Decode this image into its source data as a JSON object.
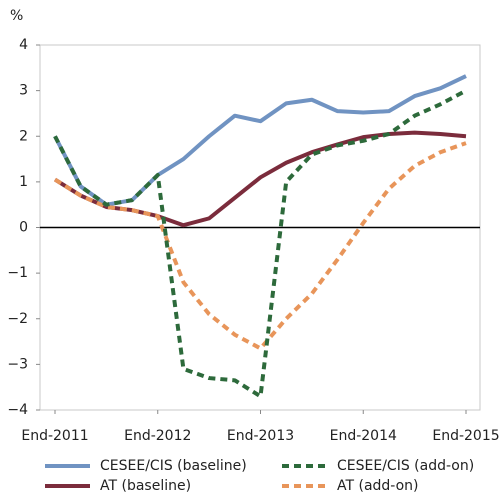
{
  "chart_data": {
    "type": "line",
    "y_unit": "%",
    "categories": [
      "End-2011",
      null,
      null,
      null,
      "End-2012",
      null,
      null,
      null,
      "End-2013",
      null,
      null,
      null,
      "End-2014",
      null,
      null,
      null,
      "End-2015"
    ],
    "series": [
      {
        "name": "CESEE/CIS (baseline)",
        "color": "#7093c2",
        "dashed": false,
        "values": [
          2.0,
          0.9,
          0.5,
          0.6,
          1.15,
          1.5,
          2.0,
          2.45,
          2.33,
          2.72,
          2.8,
          2.55,
          2.52,
          2.55,
          2.88,
          3.05,
          3.32
        ]
      },
      {
        "name": "AT (baseline)",
        "color": "#7b2c3c",
        "dashed": false,
        "values": [
          1.05,
          0.7,
          0.45,
          0.38,
          0.25,
          0.05,
          0.2,
          0.65,
          1.1,
          1.42,
          1.65,
          1.82,
          1.98,
          2.05,
          2.08,
          2.05,
          2.0
        ]
      },
      {
        "name": "CESEE/CIS (add-on)",
        "color": "#2d6a3b",
        "dashed": true,
        "values": [
          2.0,
          0.9,
          0.5,
          0.6,
          1.15,
          -3.1,
          -3.3,
          -3.35,
          -3.7,
          1.0,
          1.6,
          1.8,
          1.9,
          2.05,
          2.45,
          2.7,
          3.0
        ]
      },
      {
        "name": "AT (add-on)",
        "color": "#e8955a",
        "dashed": true,
        "values": [
          1.05,
          0.7,
          0.45,
          0.38,
          0.25,
          -1.2,
          -1.9,
          -2.35,
          -2.65,
          -2.0,
          -1.45,
          -0.7,
          0.1,
          0.85,
          1.35,
          1.65,
          1.85
        ]
      }
    ],
    "ylim": [
      -4,
      4
    ],
    "yticks": [
      {
        "value": -4,
        "label": "−4"
      },
      {
        "value": -3,
        "label": "−3"
      },
      {
        "value": -2,
        "label": "−2"
      },
      {
        "value": -1,
        "label": "−1"
      },
      0,
      1,
      2,
      3,
      4
    ]
  }
}
